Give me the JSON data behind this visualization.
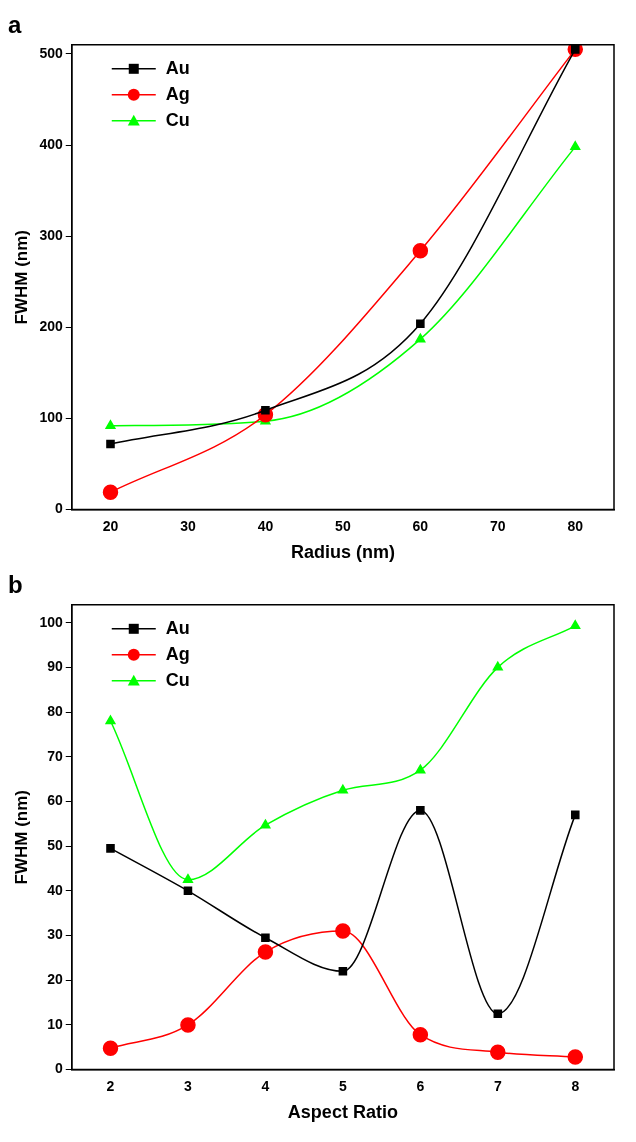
{
  "chart_data": [
    {
      "type": "line",
      "title": "a",
      "xlabel": "Radius (nm)",
      "ylabel": "FWHM (nm)",
      "x": [
        20,
        40,
        60,
        80
      ],
      "xlim": [
        15,
        85
      ],
      "xticks": [
        20,
        30,
        40,
        50,
        60,
        70,
        80
      ],
      "ylim": [
        0,
        510
      ],
      "yticks": [
        0,
        100,
        200,
        300,
        400,
        500
      ],
      "legend": "top left",
      "grid": false,
      "series": [
        {
          "name": "Au",
          "color": "#000000",
          "marker": "square",
          "values": [
            72,
            109,
            204,
            505
          ]
        },
        {
          "name": "Ag",
          "color": "#ff0000",
          "marker": "circle",
          "values": [
            19,
            104,
            284,
            505
          ]
        },
        {
          "name": "Cu",
          "color": "#00ff00",
          "marker": "triangle",
          "values": [
            92,
            97,
            187,
            398
          ]
        }
      ]
    },
    {
      "type": "line",
      "title": "b",
      "xlabel": "Aspect Ratio",
      "ylabel": "FWHM (nm)",
      "x": [
        2,
        3,
        4,
        5,
        6,
        7,
        8
      ],
      "xlim": [
        1.5,
        8.5
      ],
      "xticks": [
        2,
        3,
        4,
        5,
        6,
        7,
        8
      ],
      "ylim": [
        0,
        104
      ],
      "yticks": [
        0,
        10,
        20,
        30,
        40,
        50,
        60,
        70,
        80,
        90,
        100
      ],
      "legend": "top left",
      "grid": false,
      "series": [
        {
          "name": "Au",
          "color": "#000000",
          "marker": "square",
          "values": [
            49.5,
            40,
            29.5,
            22,
            58,
            12.5,
            57
          ]
        },
        {
          "name": "Ag",
          "color": "#ff0000",
          "marker": "circle",
          "values": [
            4.8,
            10,
            26.3,
            31,
            7.8,
            3.9,
            2.8
          ]
        },
        {
          "name": "Cu",
          "color": "#00ff00",
          "marker": "triangle",
          "values": [
            78,
            42.5,
            54.7,
            62.5,
            67,
            90,
            99.3
          ]
        }
      ]
    }
  ]
}
